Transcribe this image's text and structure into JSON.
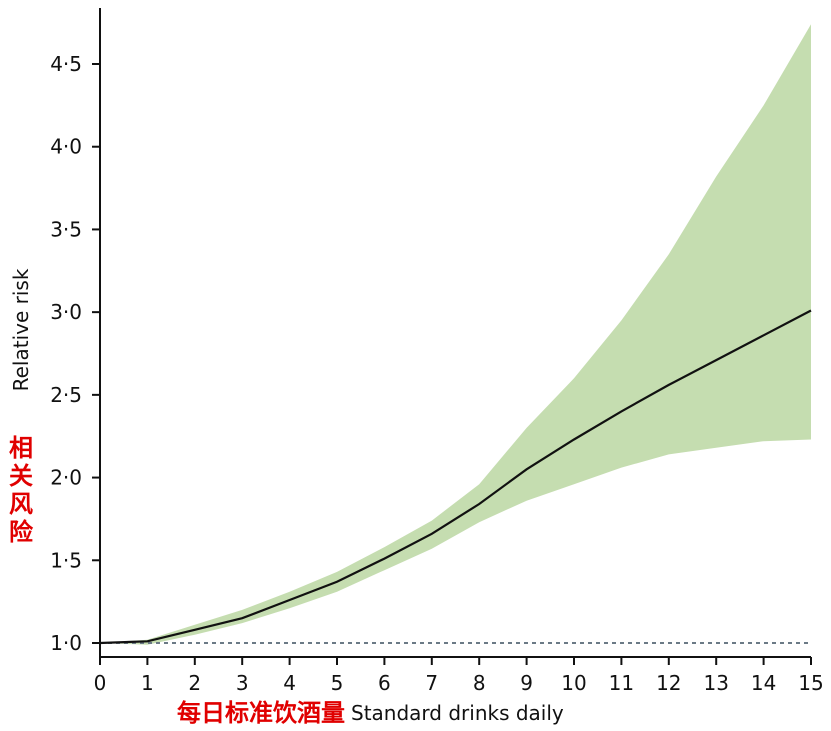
{
  "chart_data": {
    "type": "line",
    "title": "",
    "xlabel": "Standard drinks daily",
    "xlabel_cn": "每日标准饮酒量",
    "ylabel": "Relative risk",
    "ylabel_cn": "相关风险",
    "xlim": [
      0,
      15
    ],
    "ylim": [
      1.0,
      4.8
    ],
    "x_ticks": [
      0,
      1,
      2,
      3,
      4,
      5,
      6,
      7,
      8,
      9,
      10,
      11,
      12,
      13,
      14,
      15
    ],
    "y_ticks": [
      1.0,
      1.5,
      2.0,
      2.5,
      3.0,
      3.5,
      4.0,
      4.5
    ],
    "y_tick_labels": [
      "1·0",
      "1·5",
      "2·0",
      "2·5",
      "3·0",
      "3·5",
      "4·0",
      "4·5"
    ],
    "reference_line": 1.0,
    "grid": false,
    "colors": {
      "line": "#111111",
      "band": "#c5ddb0",
      "reference": "#6b7a86",
      "cn_text": "#e00000"
    },
    "x": [
      0,
      1,
      2,
      3,
      4,
      5,
      6,
      7,
      8,
      9,
      10,
      11,
      12,
      13,
      14,
      15
    ],
    "y": [
      1.0,
      1.01,
      1.08,
      1.15,
      1.26,
      1.37,
      1.51,
      1.66,
      1.84,
      2.05,
      2.23,
      2.4,
      2.56,
      2.71,
      2.86,
      3.01
    ],
    "lower": [
      1.0,
      0.99,
      1.05,
      1.12,
      1.21,
      1.31,
      1.44,
      1.57,
      1.73,
      1.86,
      1.96,
      2.06,
      2.14,
      2.18,
      2.22,
      2.23
    ],
    "upper": [
      1.0,
      1.02,
      1.11,
      1.2,
      1.31,
      1.43,
      1.58,
      1.74,
      1.96,
      2.3,
      2.6,
      2.95,
      3.35,
      3.82,
      4.25,
      4.74
    ]
  }
}
